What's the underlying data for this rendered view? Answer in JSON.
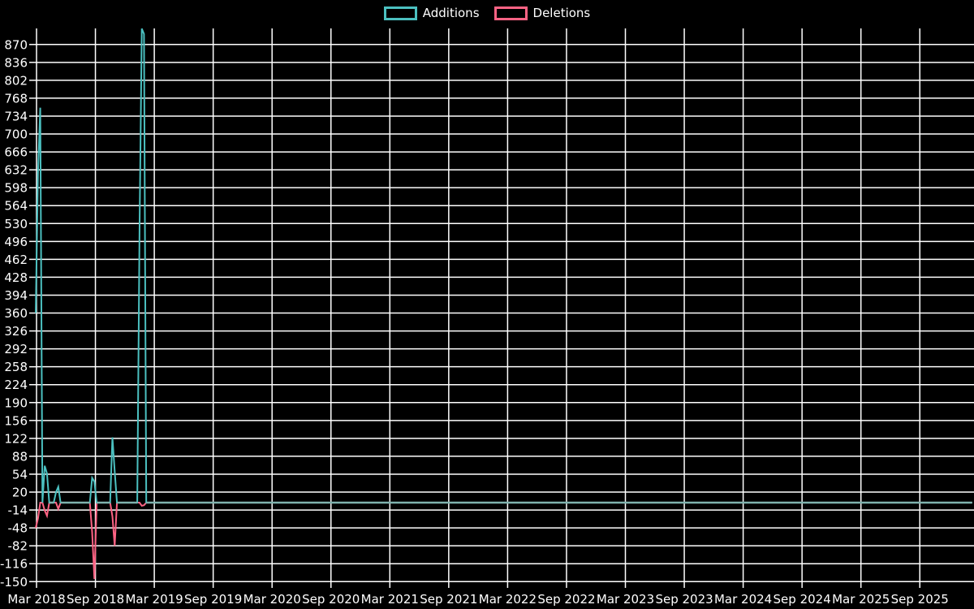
{
  "chart_data": {
    "type": "line",
    "title": "",
    "background_color": "#000000",
    "text_color": "#ffffff",
    "legend": {
      "position": "top",
      "items": [
        {
          "label": "Additions",
          "color": "#4bc0c0"
        },
        {
          "label": "Deletions",
          "color": "#ff6384"
        }
      ]
    },
    "grid": {
      "show": true,
      "color": "#ffffff"
    },
    "x_axis": {
      "unit": "weeks",
      "tick_labels": [
        "Mar 2018",
        "Sep 2018",
        "Mar 2019",
        "Sep 2019",
        "Mar 2020",
        "Sep 2020",
        "Mar 2021",
        "Sep 2021",
        "Mar 2022",
        "Sep 2022",
        "Mar 2023",
        "Sep 2023",
        "Mar 2024",
        "Sep 2024",
        "Mar 2025",
        "Sep 2025"
      ],
      "weeks_per_tick": 26.09
    },
    "y_axis": {
      "min": -150,
      "max": 904,
      "tick_step": 34,
      "tick_labels": [
        870,
        836,
        802,
        768,
        734,
        700,
        666,
        632,
        598,
        564,
        530,
        496,
        462,
        428,
        394,
        360,
        326,
        292,
        258,
        224,
        190,
        156,
        122,
        88,
        54,
        20,
        -14,
        -48,
        -82,
        -116,
        -150
      ]
    },
    "weeks_total": 416,
    "default_value": 0,
    "series": [
      {
        "name": "Additions",
        "color": "#4bc0c0",
        "nonzero_points": [
          [
            0,
            360
          ],
          [
            1,
            625
          ],
          [
            2,
            750
          ],
          [
            4,
            70
          ],
          [
            5,
            55
          ],
          [
            9,
            20
          ],
          [
            10,
            30
          ],
          [
            25,
            47
          ],
          [
            26,
            40
          ],
          [
            34,
            124
          ],
          [
            35,
            60
          ],
          [
            46,
            515
          ],
          [
            47,
            900
          ],
          [
            48,
            890
          ]
        ]
      },
      {
        "name": "Deletions",
        "color": "#ff6384",
        "nonzero_points": [
          [
            0,
            -48
          ],
          [
            1,
            -30
          ],
          [
            4,
            -15
          ],
          [
            5,
            -25
          ],
          [
            10,
            -12
          ],
          [
            25,
            -56
          ],
          [
            26,
            -145
          ],
          [
            34,
            -26
          ],
          [
            35,
            -82
          ],
          [
            47,
            -6
          ],
          [
            48,
            -5
          ]
        ]
      }
    ]
  }
}
